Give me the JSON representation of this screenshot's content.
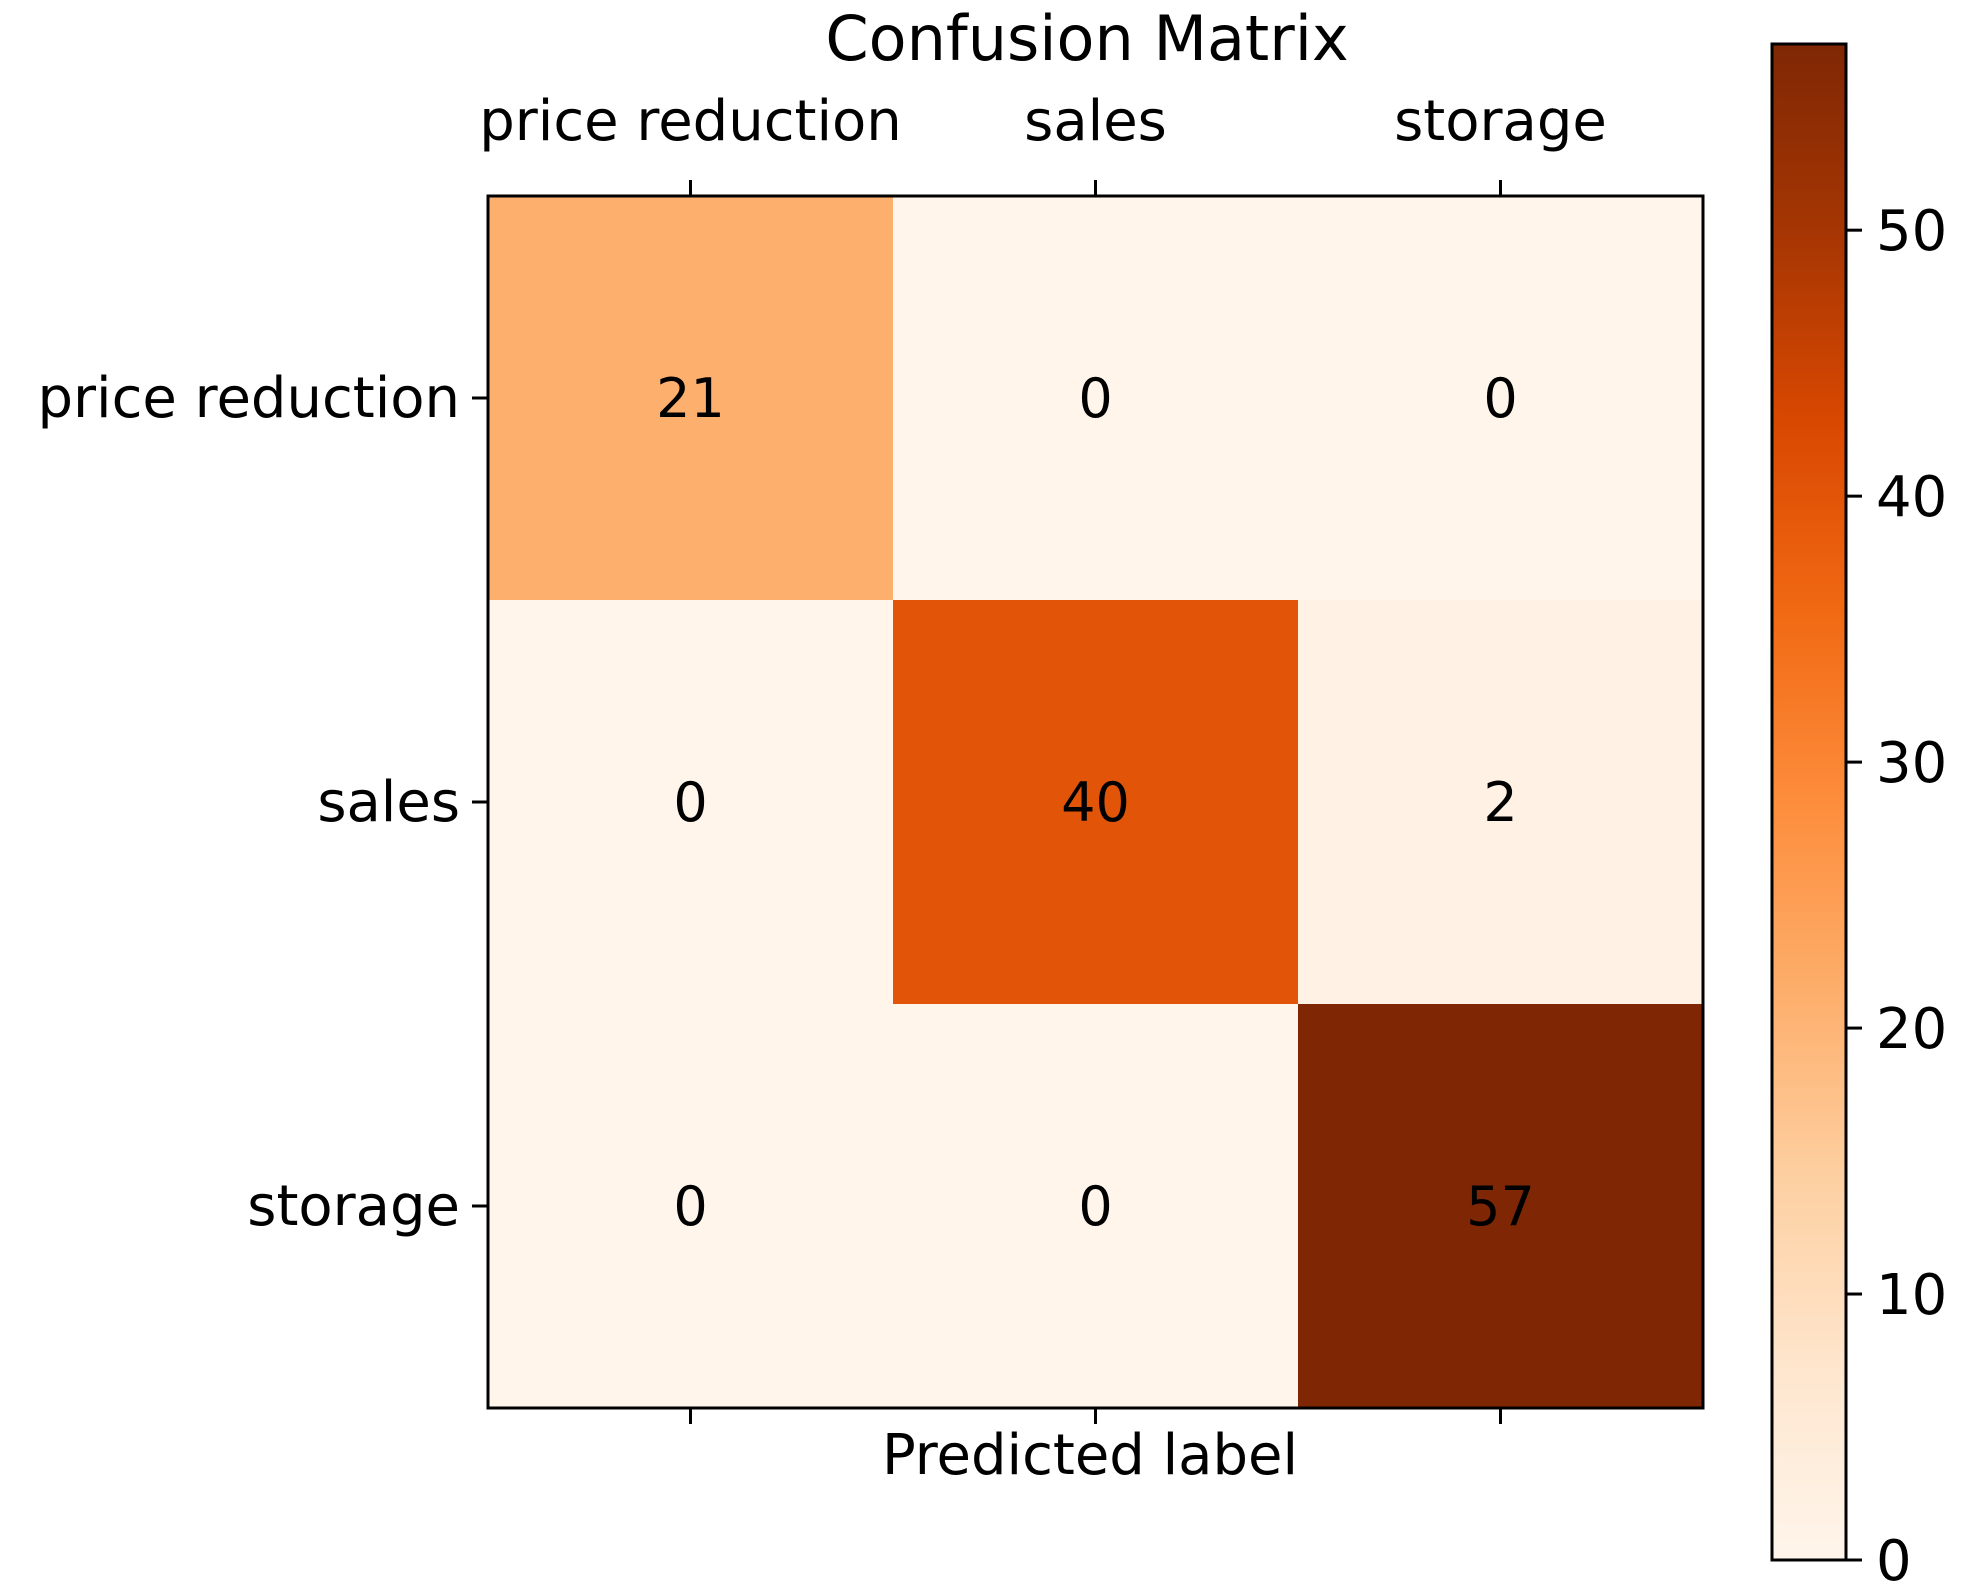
{
  "chart_data": {
    "type": "heatmap",
    "title": "Confusion Matrix",
    "xlabel": "Predicted label",
    "ylabel": "",
    "x_categories": [
      "price reduction",
      "sales",
      "storage"
    ],
    "y_categories": [
      "price reduction",
      "sales",
      "storage"
    ],
    "values": [
      [
        21,
        0,
        0
      ],
      [
        0,
        40,
        2
      ],
      [
        0,
        0,
        57
      ]
    ],
    "colormap": "Oranges",
    "colorbar": {
      "range": [
        0,
        57
      ],
      "ticks": [
        0,
        10,
        20,
        30,
        40,
        50
      ],
      "tick_labels": [
        "0",
        "10",
        "20",
        "30",
        "40",
        "50"
      ]
    },
    "x_tick_position": "top"
  }
}
